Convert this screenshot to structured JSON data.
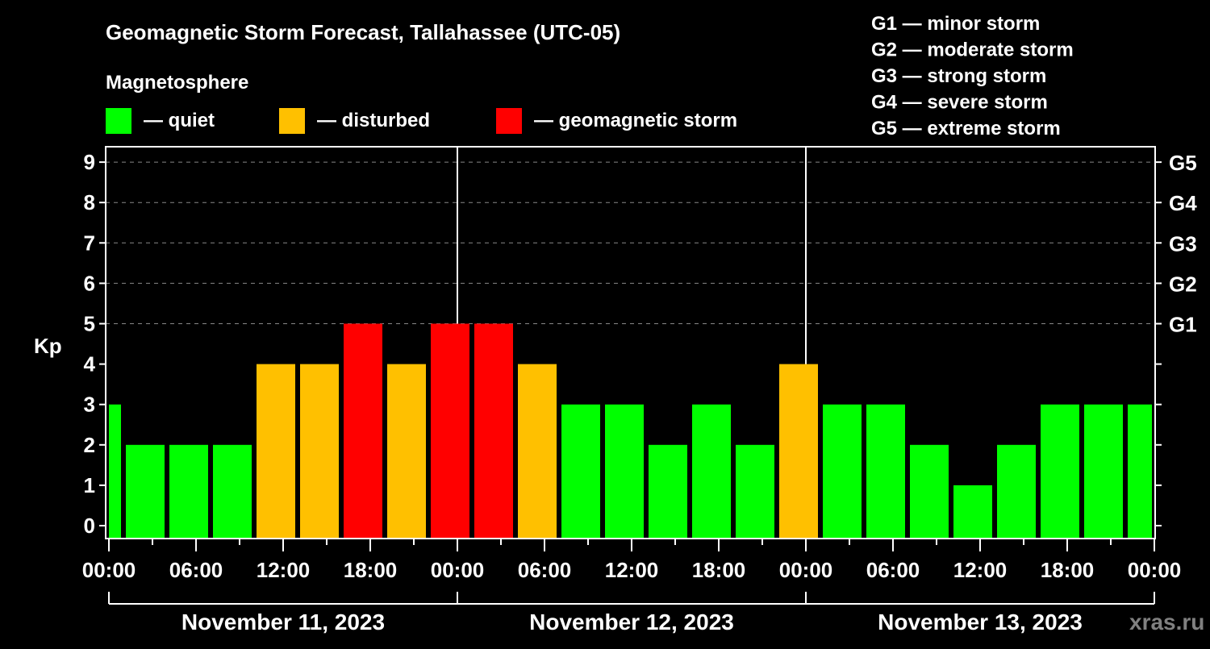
{
  "chart_data": {
    "type": "bar",
    "title": "Geomagnetic Storm Forecast, Tallahassee (UTC-05)",
    "legend_title": "Magnetosphere",
    "legend": [
      {
        "label": "— quiet",
        "color": "#00ff00"
      },
      {
        "label": "— disturbed",
        "color": "#ffc000"
      },
      {
        "label": "— geomagnetic storm",
        "color": "#ff0000"
      }
    ],
    "storm_scale": [
      "G1 — minor storm",
      "G2 — moderate storm",
      "G3 — strong storm",
      "G4 — severe storm",
      "G5 — extreme storm"
    ],
    "ylabel": "Kp",
    "ylim": [
      0,
      9
    ],
    "yticks": [
      "0",
      "1",
      "2",
      "3",
      "4",
      "5",
      "6",
      "7",
      "8",
      "9"
    ],
    "right_ticks": [
      {
        "value": 5,
        "label": "G1"
      },
      {
        "value": 6,
        "label": "G2"
      },
      {
        "value": 7,
        "label": "G3"
      },
      {
        "value": 8,
        "label": "G4"
      },
      {
        "value": 9,
        "label": "G5"
      }
    ],
    "xticks": [
      "00:00",
      "06:00",
      "12:00",
      "18:00",
      "00:00",
      "06:00",
      "12:00",
      "18:00",
      "00:00",
      "06:00",
      "12:00",
      "18:00",
      "00:00"
    ],
    "dates": [
      "November 11, 2023",
      "November 12, 2023",
      "November 13, 2023"
    ],
    "x_range_hours": [
      0,
      72
    ],
    "bars": [
      {
        "start": 0,
        "end": 1,
        "kp": 3
      },
      {
        "start": 1,
        "end": 4,
        "kp": 2
      },
      {
        "start": 4,
        "end": 7,
        "kp": 2
      },
      {
        "start": 7,
        "end": 10,
        "kp": 2
      },
      {
        "start": 10,
        "end": 13,
        "kp": 4
      },
      {
        "start": 13,
        "end": 16,
        "kp": 4
      },
      {
        "start": 16,
        "end": 19,
        "kp": 5
      },
      {
        "start": 19,
        "end": 22,
        "kp": 4
      },
      {
        "start": 22,
        "end": 25,
        "kp": 5
      },
      {
        "start": 25,
        "end": 28,
        "kp": 5
      },
      {
        "start": 28,
        "end": 31,
        "kp": 4
      },
      {
        "start": 31,
        "end": 34,
        "kp": 3
      },
      {
        "start": 34,
        "end": 37,
        "kp": 3
      },
      {
        "start": 37,
        "end": 40,
        "kp": 2
      },
      {
        "start": 40,
        "end": 43,
        "kp": 3
      },
      {
        "start": 43,
        "end": 46,
        "kp": 2
      },
      {
        "start": 46,
        "end": 49,
        "kp": 4
      },
      {
        "start": 49,
        "end": 52,
        "kp": 3
      },
      {
        "start": 52,
        "end": 55,
        "kp": 3
      },
      {
        "start": 55,
        "end": 58,
        "kp": 2
      },
      {
        "start": 58,
        "end": 61,
        "kp": 1
      },
      {
        "start": 61,
        "end": 64,
        "kp": 2
      },
      {
        "start": 64,
        "end": 67,
        "kp": 3
      },
      {
        "start": 67,
        "end": 70,
        "kp": 3
      },
      {
        "start": 70,
        "end": 72,
        "kp": 3
      }
    ]
  },
  "watermark": "xras.ru"
}
